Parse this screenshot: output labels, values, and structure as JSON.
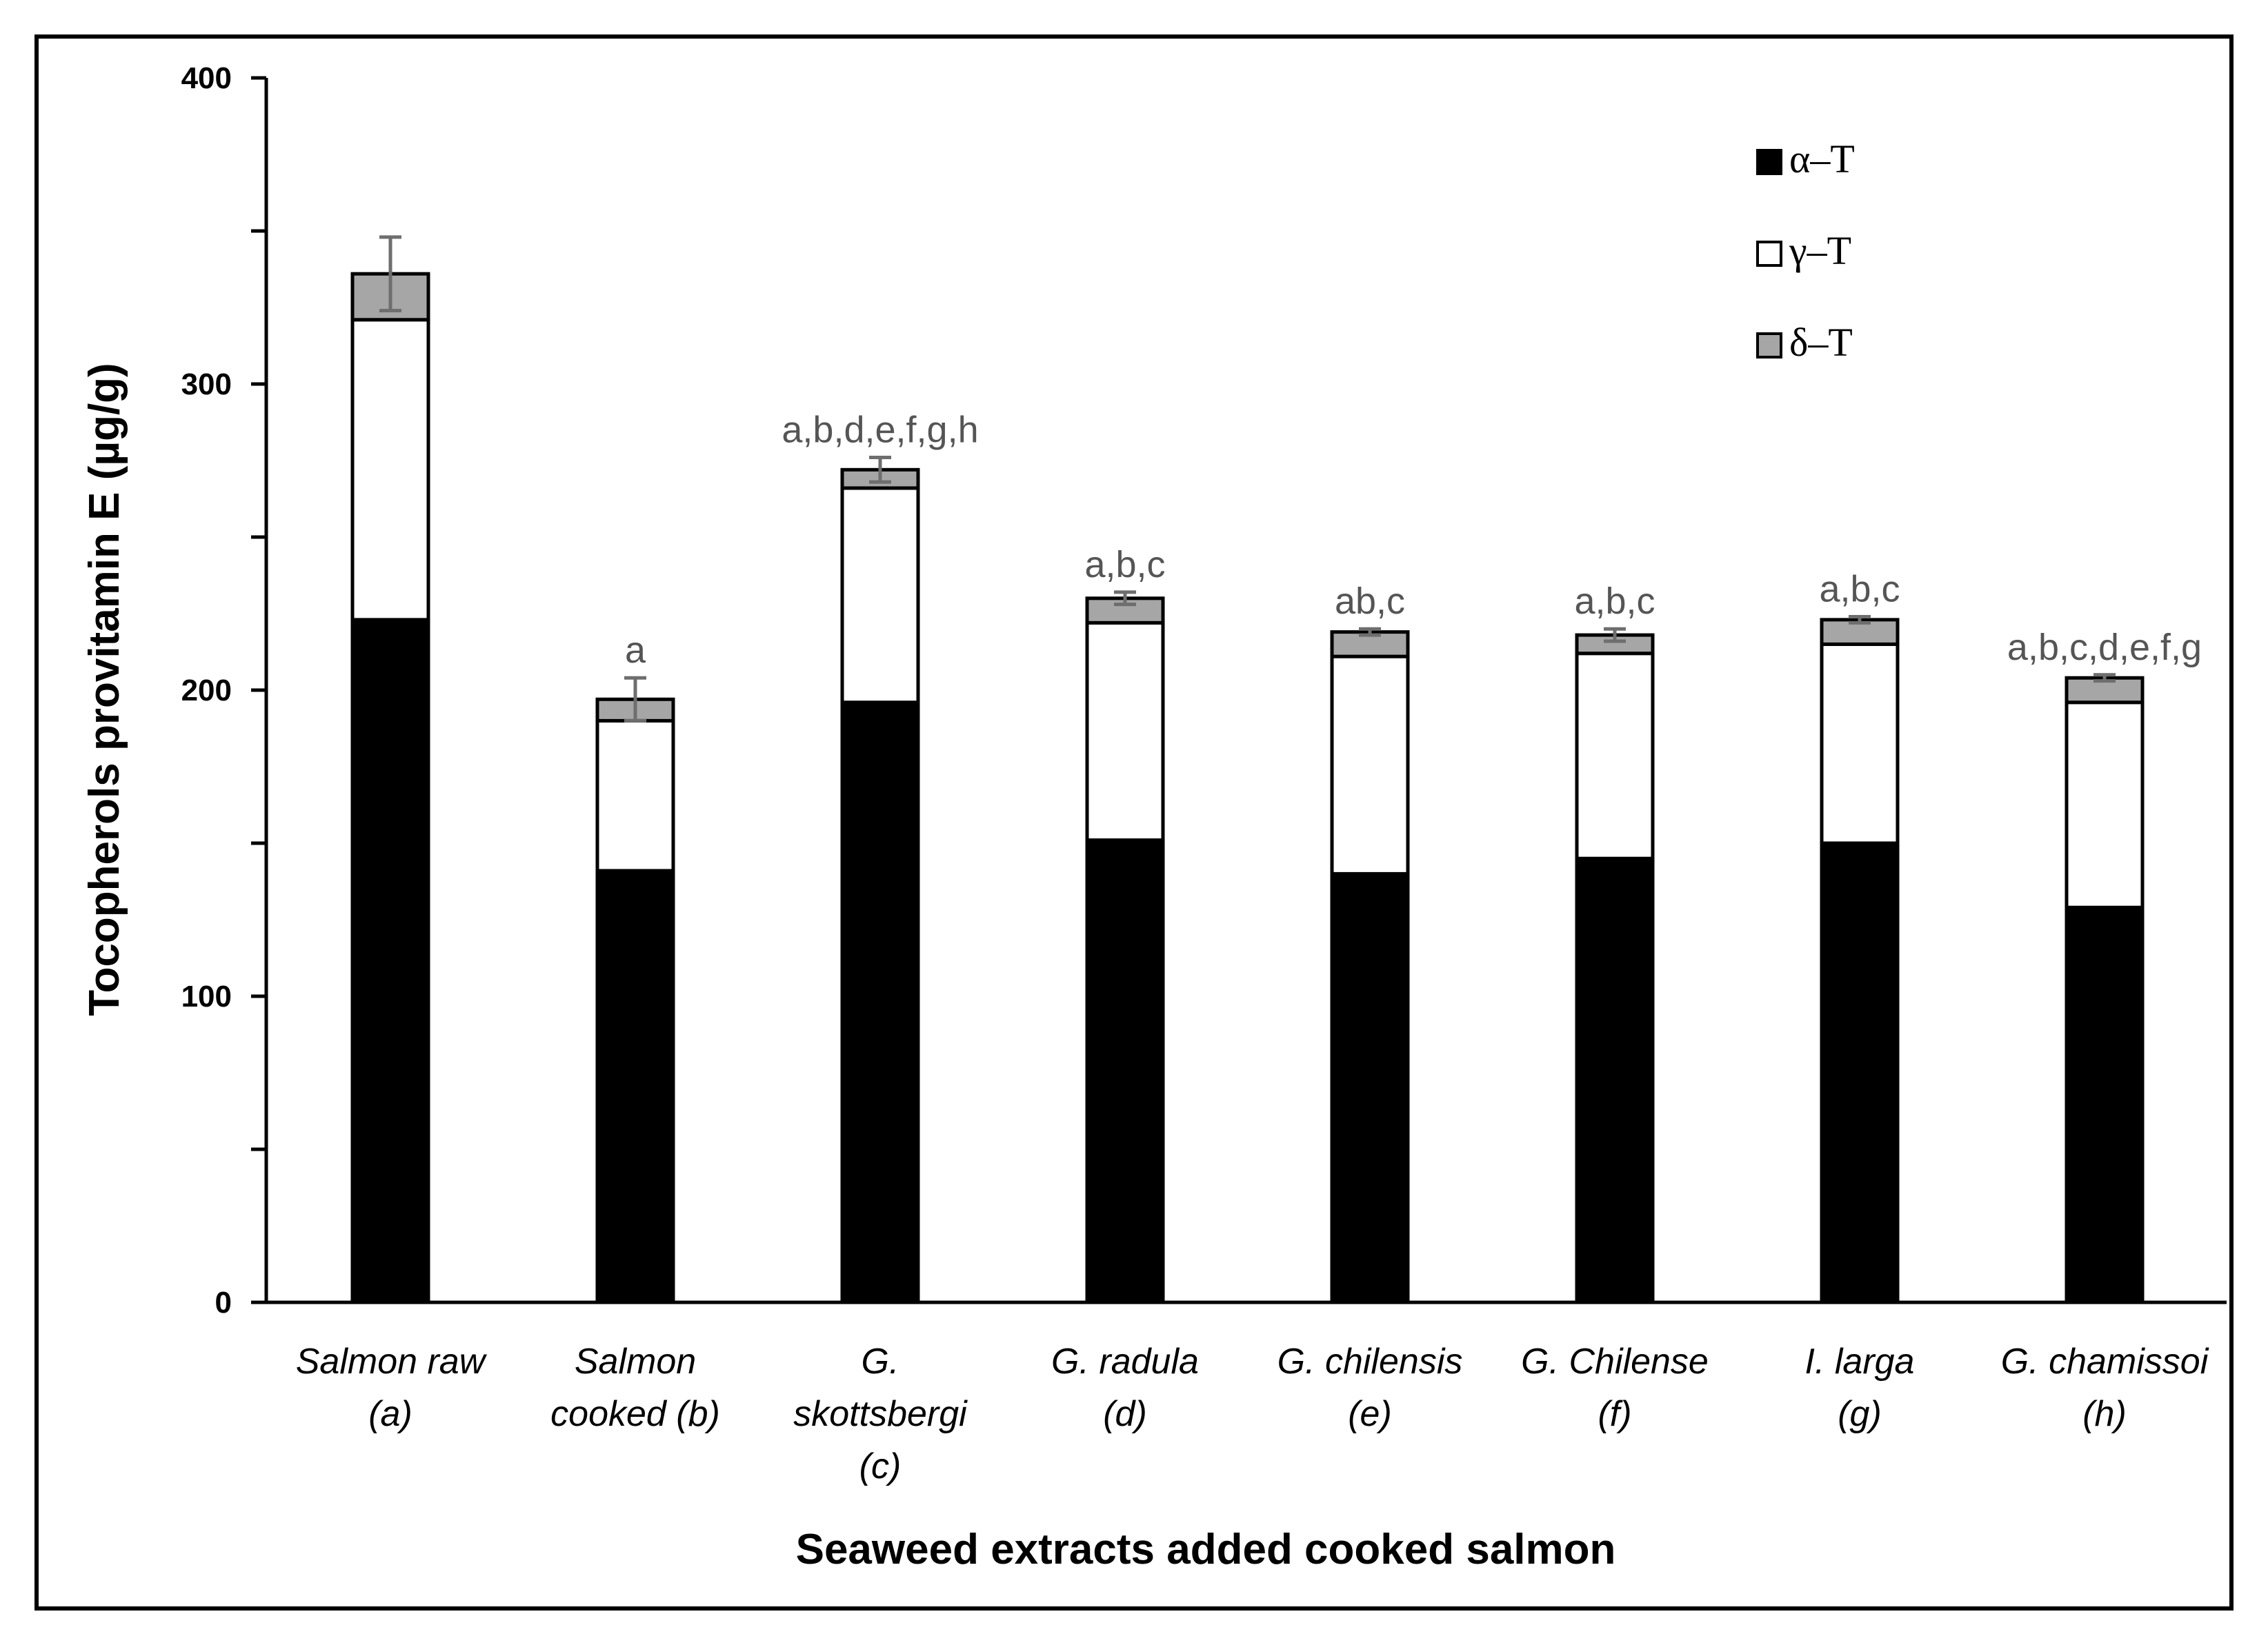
{
  "chart_data": {
    "type": "bar",
    "stacked": true,
    "xlabel": "Seaweed extracts added cooked salmon",
    "ylabel": "Tocopherols  provitamin E (µg/g)",
    "ylim": [
      0,
      400
    ],
    "yticks": [
      0,
      100,
      200,
      300,
      400
    ],
    "grid": false,
    "legend_position": "top-right",
    "categories": [
      [
        "Salmon raw",
        "(a)"
      ],
      [
        "Salmon",
        "cooked (b)"
      ],
      [
        "G.",
        "skottsbergi",
        "(c)"
      ],
      [
        "G. radula",
        "(d)"
      ],
      [
        "G. chilensis",
        "(e)"
      ],
      [
        "G. Chilense",
        "(f)"
      ],
      [
        "I. larga",
        "(g)"
      ],
      [
        "G. chamissoi",
        "(h)"
      ]
    ],
    "series": [
      {
        "name": "α–T",
        "color": "#000000",
        "values": [
          223,
          141,
          196,
          151,
          140,
          145,
          150,
          129
        ]
      },
      {
        "name": "γ–T",
        "color": "#ffffff",
        "values": [
          98,
          49,
          70,
          71,
          71,
          67,
          65,
          67
        ]
      },
      {
        "name": "δ–T",
        "color": "#a6a6a6",
        "values": [
          15,
          7,
          6,
          8,
          8,
          6,
          8,
          8
        ]
      }
    ],
    "error_bars": [
      12,
      7,
      4,
      2,
      1,
      2,
      1,
      1
    ],
    "annotations": [
      "",
      "a",
      "a,b,d,e,f,g,h",
      "a,b,c",
      "ab,c",
      "a,b,c",
      "a,b,c",
      "a,b,c,d,e,f,g"
    ]
  }
}
